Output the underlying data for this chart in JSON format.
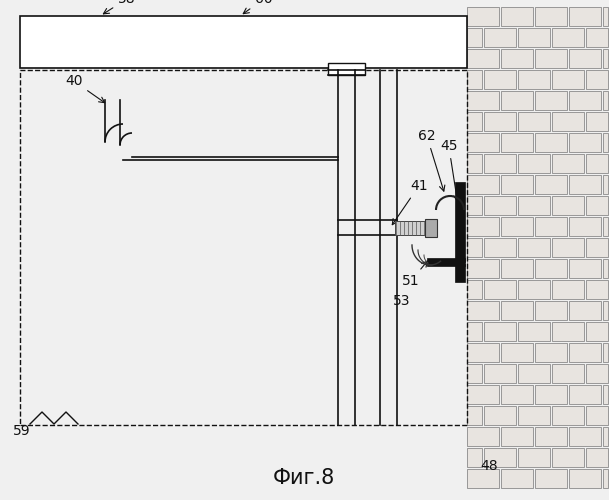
{
  "bg_color": "#f0f0f0",
  "title": "Фиг.8",
  "title_fontsize": 15,
  "fig_w": 6.09,
  "fig_h": 5.0,
  "dpi": 100
}
